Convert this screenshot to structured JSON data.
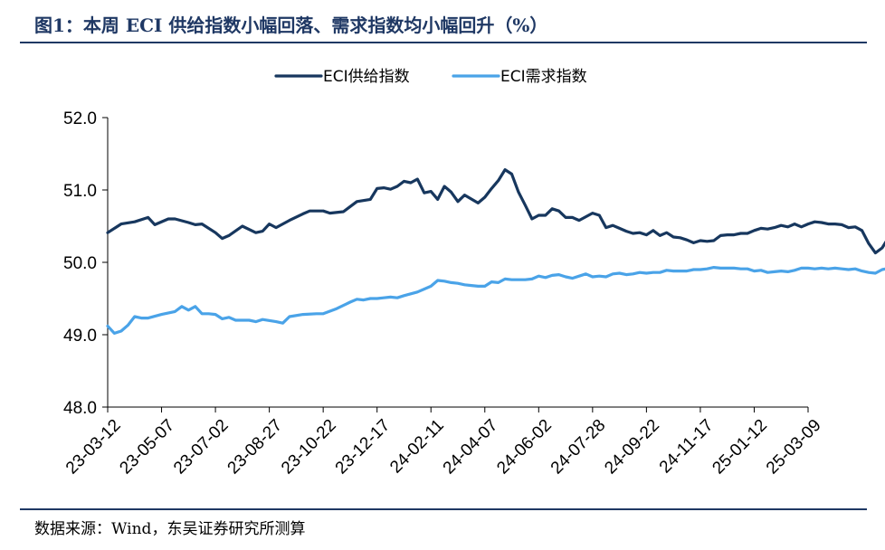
{
  "figure": {
    "title": "图1：本周 ECI 供给指数小幅回落、需求指数均小幅回升（%）",
    "source": "数据来源：Wind，东吴证券研究所测算"
  },
  "chart_data": {
    "type": "line",
    "title": "",
    "xlabel": "",
    "ylabel": "",
    "ylim": [
      48.0,
      52.0
    ],
    "yticks": [
      "48.0",
      "49.0",
      "50.0",
      "51.0",
      "52.0"
    ],
    "x_tick_labels": [
      "23-03-12",
      "23-05-07",
      "23-07-02",
      "23-08-27",
      "23-10-22",
      "23-12-17",
      "24-02-11",
      "24-04-07",
      "24-06-02",
      "24-07-28",
      "24-09-22",
      "24-11-17",
      "25-01-12",
      "25-03-09"
    ],
    "x_start": "23-03-12",
    "x_end": "25-03-09",
    "grid": false,
    "legend_position": "top-center",
    "series": [
      {
        "name": "ECI供给指数",
        "color": "#17375e",
        "points": [
          [
            0,
            50.41
          ],
          [
            2,
            50.53
          ],
          [
            4,
            50.56
          ],
          [
            6,
            50.62
          ],
          [
            7,
            50.52
          ],
          [
            9,
            50.6
          ],
          [
            10,
            50.6
          ],
          [
            12,
            50.55
          ],
          [
            13,
            50.52
          ],
          [
            14,
            50.53
          ],
          [
            16,
            50.41
          ],
          [
            17,
            50.33
          ],
          [
            18,
            50.37
          ],
          [
            20,
            50.5
          ],
          [
            22,
            50.41
          ],
          [
            23,
            50.43
          ],
          [
            24,
            50.53
          ],
          [
            25,
            50.48
          ],
          [
            27,
            50.58
          ],
          [
            29,
            50.67
          ],
          [
            30,
            50.71
          ],
          [
            32,
            50.71
          ],
          [
            33,
            50.68
          ],
          [
            35,
            50.7
          ],
          [
            37,
            50.84
          ],
          [
            39,
            50.87
          ],
          [
            40,
            51.02
          ],
          [
            41,
            51.03
          ],
          [
            42,
            51.01
          ],
          [
            43,
            51.05
          ],
          [
            44,
            51.12
          ],
          [
            45,
            51.1
          ],
          [
            46,
            51.15
          ],
          [
            47,
            50.96
          ],
          [
            48,
            50.98
          ],
          [
            49,
            50.87
          ],
          [
            50,
            51.05
          ],
          [
            51,
            50.97
          ],
          [
            52,
            50.84
          ],
          [
            53,
            50.93
          ],
          [
            55,
            50.82
          ],
          [
            56,
            50.9
          ],
          [
            57,
            51.02
          ],
          [
            58,
            51.13
          ],
          [
            59,
            51.28
          ],
          [
            60,
            51.22
          ],
          [
            61,
            50.97
          ],
          [
            62,
            50.79
          ],
          [
            63,
            50.6
          ],
          [
            64,
            50.65
          ],
          [
            65,
            50.65
          ],
          [
            66,
            50.74
          ],
          [
            67,
            50.71
          ],
          [
            68,
            50.62
          ],
          [
            69,
            50.62
          ],
          [
            70,
            50.58
          ],
          [
            71,
            50.63
          ],
          [
            72,
            50.68
          ],
          [
            73,
            50.65
          ],
          [
            74,
            50.48
          ],
          [
            75,
            50.51
          ],
          [
            76,
            50.47
          ],
          [
            77,
            50.43
          ],
          [
            78,
            50.4
          ],
          [
            79,
            50.41
          ],
          [
            80,
            50.38
          ],
          [
            81,
            50.44
          ],
          [
            82,
            50.37
          ],
          [
            83,
            50.41
          ],
          [
            84,
            50.35
          ],
          [
            85,
            50.34
          ],
          [
            86,
            50.31
          ],
          [
            87,
            50.27
          ],
          [
            88,
            50.3
          ],
          [
            89,
            50.29
          ],
          [
            90,
            50.3
          ],
          [
            91,
            50.37
          ],
          [
            92,
            50.38
          ],
          [
            93,
            50.38
          ],
          [
            94,
            50.4
          ],
          [
            95,
            50.4
          ],
          [
            96,
            50.44
          ],
          [
            97,
            50.47
          ],
          [
            98,
            50.46
          ],
          [
            99,
            50.48
          ],
          [
            100,
            50.51
          ],
          [
            101,
            50.49
          ],
          [
            102,
            50.53
          ],
          [
            103,
            50.49
          ],
          [
            104,
            50.53
          ],
          [
            105,
            50.56
          ],
          [
            106,
            50.55
          ],
          [
            107,
            50.53
          ],
          [
            108,
            50.53
          ],
          [
            109,
            50.52
          ],
          [
            110,
            50.48
          ],
          [
            111,
            50.49
          ],
          [
            112,
            50.44
          ],
          [
            113,
            50.26
          ],
          [
            114,
            50.13
          ],
          [
            115,
            50.2
          ],
          [
            116,
            50.35
          ],
          [
            117,
            50.42
          ],
          [
            118,
            50.38
          ]
        ]
      },
      {
        "name": "ECI需求指数",
        "color": "#4aa3e8",
        "points": [
          [
            0,
            49.12
          ],
          [
            1,
            49.02
          ],
          [
            2,
            49.05
          ],
          [
            3,
            49.13
          ],
          [
            4,
            49.25
          ],
          [
            5,
            49.23
          ],
          [
            6,
            49.23
          ],
          [
            8,
            49.28
          ],
          [
            10,
            49.32
          ],
          [
            11,
            49.39
          ],
          [
            12,
            49.34
          ],
          [
            13,
            49.39
          ],
          [
            14,
            49.29
          ],
          [
            15,
            49.29
          ],
          [
            16,
            49.28
          ],
          [
            17,
            49.22
          ],
          [
            18,
            49.24
          ],
          [
            19,
            49.2
          ],
          [
            21,
            49.2
          ],
          [
            22,
            49.18
          ],
          [
            23,
            49.21
          ],
          [
            25,
            49.18
          ],
          [
            26,
            49.16
          ],
          [
            27,
            49.25
          ],
          [
            29,
            49.28
          ],
          [
            31,
            49.29
          ],
          [
            32,
            49.29
          ],
          [
            34,
            49.36
          ],
          [
            36,
            49.45
          ],
          [
            37,
            49.49
          ],
          [
            38,
            49.48
          ],
          [
            39,
            49.5
          ],
          [
            40,
            49.5
          ],
          [
            41,
            49.51
          ],
          [
            42,
            49.52
          ],
          [
            43,
            49.51
          ],
          [
            44,
            49.54
          ],
          [
            46,
            49.59
          ],
          [
            48,
            49.67
          ],
          [
            49,
            49.75
          ],
          [
            50,
            49.74
          ],
          [
            51,
            49.72
          ],
          [
            52,
            49.71
          ],
          [
            53,
            49.69
          ],
          [
            54,
            49.68
          ],
          [
            55,
            49.67
          ],
          [
            56,
            49.67
          ],
          [
            57,
            49.73
          ],
          [
            58,
            49.72
          ],
          [
            59,
            49.77
          ],
          [
            60,
            49.76
          ],
          [
            61,
            49.76
          ],
          [
            62,
            49.76
          ],
          [
            63,
            49.77
          ],
          [
            64,
            49.81
          ],
          [
            65,
            49.79
          ],
          [
            66,
            49.82
          ],
          [
            67,
            49.83
          ],
          [
            68,
            49.8
          ],
          [
            69,
            49.78
          ],
          [
            70,
            49.81
          ],
          [
            71,
            49.84
          ],
          [
            72,
            49.8
          ],
          [
            73,
            49.81
          ],
          [
            74,
            49.8
          ],
          [
            75,
            49.84
          ],
          [
            76,
            49.85
          ],
          [
            77,
            49.83
          ],
          [
            78,
            49.84
          ],
          [
            79,
            49.86
          ],
          [
            80,
            49.85
          ],
          [
            81,
            49.86
          ],
          [
            82,
            49.86
          ],
          [
            83,
            49.89
          ],
          [
            84,
            49.88
          ],
          [
            85,
            49.88
          ],
          [
            86,
            49.88
          ],
          [
            87,
            49.9
          ],
          [
            88,
            49.9
          ],
          [
            89,
            49.91
          ],
          [
            90,
            49.93
          ],
          [
            91,
            49.92
          ],
          [
            92,
            49.92
          ],
          [
            93,
            49.92
          ],
          [
            94,
            49.91
          ],
          [
            95,
            49.91
          ],
          [
            96,
            49.88
          ],
          [
            97,
            49.89
          ],
          [
            98,
            49.86
          ],
          [
            99,
            49.87
          ],
          [
            100,
            49.88
          ],
          [
            101,
            49.87
          ],
          [
            102,
            49.89
          ],
          [
            103,
            49.92
          ],
          [
            104,
            49.92
          ],
          [
            105,
            49.91
          ],
          [
            106,
            49.92
          ],
          [
            107,
            49.91
          ],
          [
            108,
            49.92
          ],
          [
            109,
            49.91
          ],
          [
            110,
            49.9
          ],
          [
            111,
            49.91
          ],
          [
            112,
            49.88
          ],
          [
            113,
            49.86
          ],
          [
            114,
            49.85
          ],
          [
            115,
            49.9
          ],
          [
            116,
            49.92
          ],
          [
            117,
            49.94
          ],
          [
            118,
            49.96
          ]
        ]
      }
    ]
  }
}
